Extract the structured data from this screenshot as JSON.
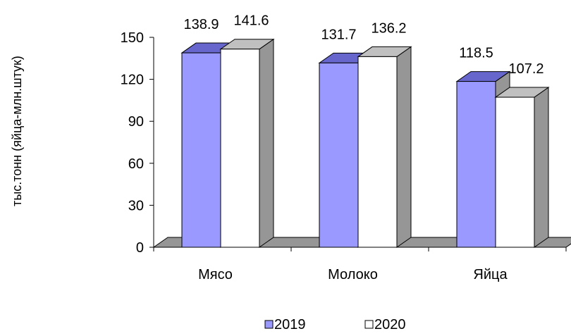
{
  "chart_data": {
    "type": "bar",
    "ylabel": "тыс.тонн (яйца-млн.штук)",
    "categories": [
      "Мясо",
      "Молоко",
      "Яйца"
    ],
    "series": [
      {
        "name": "2019",
        "values": [
          138.9,
          131.7,
          118.5
        ],
        "color": "#9999ff"
      },
      {
        "name": "2020",
        "values": [
          141.6,
          136.2,
          107.2
        ],
        "color": "#ffffff"
      }
    ],
    "ylim": [
      0,
      150
    ],
    "yticks": [
      "0",
      "30",
      "60",
      "90",
      "120",
      "150"
    ],
    "data_labels": [
      [
        "138.9",
        "131.7",
        "118.5"
      ],
      [
        "141.6",
        "136.2",
        "107.2"
      ]
    ],
    "grid": false,
    "legend": "bottom",
    "floor_color": "#969696"
  }
}
